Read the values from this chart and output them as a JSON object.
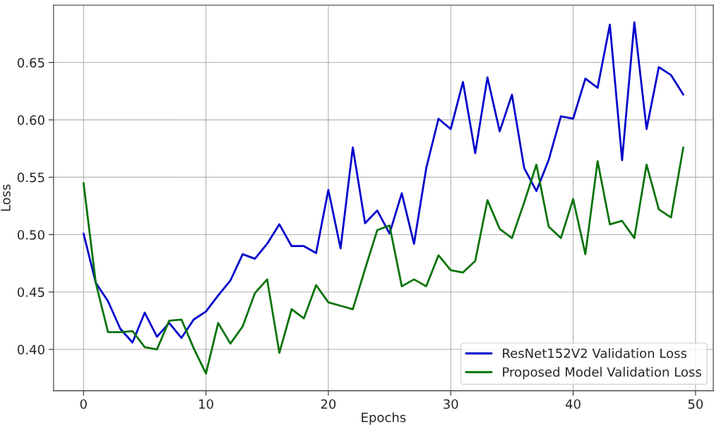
{
  "chart_data": {
    "type": "line",
    "xlabel": "Epochs",
    "ylabel": "Loss",
    "x": [
      0,
      1,
      2,
      3,
      4,
      5,
      6,
      7,
      8,
      9,
      10,
      11,
      12,
      13,
      14,
      15,
      16,
      17,
      18,
      19,
      20,
      21,
      22,
      23,
      24,
      25,
      26,
      27,
      28,
      29,
      30,
      31,
      32,
      33,
      34,
      35,
      36,
      37,
      38,
      39,
      40,
      41,
      42,
      43,
      44,
      45,
      46,
      47,
      48,
      49
    ],
    "series": [
      {
        "name": "ResNet152V2 Validation Loss",
        "color": "#0000cc",
        "values": [
          0.501,
          0.458,
          0.442,
          0.418,
          0.406,
          0.432,
          0.411,
          0.423,
          0.41,
          0.426,
          0.433,
          0.447,
          0.46,
          0.483,
          0.479,
          0.492,
          0.509,
          0.49,
          0.49,
          0.484,
          0.539,
          0.488,
          0.576,
          0.51,
          0.521,
          0.501,
          0.536,
          0.492,
          0.558,
          0.601,
          0.592,
          0.633,
          0.571,
          0.637,
          0.59,
          0.622,
          0.558,
          0.538,
          0.565,
          0.603,
          0.601,
          0.636,
          0.628,
          0.683,
          0.565,
          0.685,
          0.592,
          0.646,
          0.639,
          0.622
        ]
      },
      {
        "name": "Proposed Model Validation Loss",
        "color": "#077307",
        "values": [
          0.545,
          0.458,
          0.415,
          0.415,
          0.416,
          0.402,
          0.4,
          0.425,
          0.426,
          0.401,
          0.379,
          0.423,
          0.405,
          0.42,
          0.449,
          0.461,
          0.397,
          0.435,
          0.427,
          0.456,
          0.441,
          0.438,
          0.435,
          0.47,
          0.504,
          0.508,
          0.455,
          0.461,
          0.455,
          0.482,
          0.469,
          0.467,
          0.477,
          0.53,
          0.505,
          0.497,
          0.528,
          0.561,
          0.507,
          0.497,
          0.531,
          0.483,
          0.564,
          0.509,
          0.512,
          0.497,
          0.561,
          0.522,
          0.515,
          0.576
        ]
      }
    ],
    "xlim": [
      -2.45,
      51.45
    ],
    "xticks": [
      0,
      10,
      20,
      30,
      40,
      50
    ],
    "ylim": [
      0.364,
      0.7
    ],
    "yticks": [
      {
        "value": 0.4,
        "label": "0.40"
      },
      {
        "value": 0.45,
        "label": "0.45"
      },
      {
        "value": 0.5,
        "label": "0.50"
      },
      {
        "value": 0.55,
        "label": "0.55"
      },
      {
        "value": 0.6,
        "label": "0.60"
      },
      {
        "value": 0.65,
        "label": "0.65"
      }
    ],
    "grid": true,
    "legend": "bottom right",
    "line_style": "solid",
    "marker": "none"
  }
}
